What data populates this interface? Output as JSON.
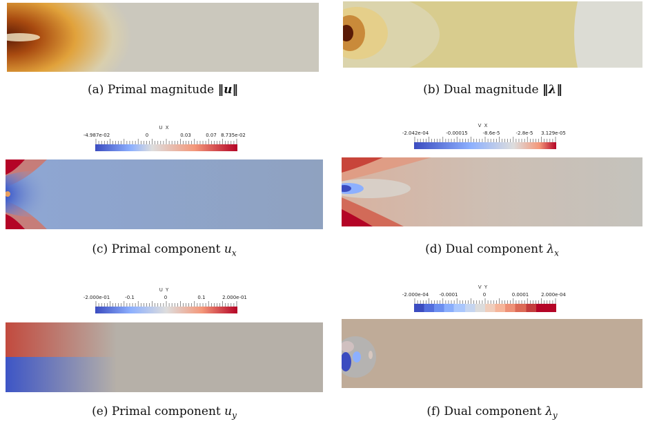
{
  "captions": {
    "a": {
      "prefix": "(a) Primal magnitude ",
      "math": "‖u‖"
    },
    "b": {
      "prefix": "(b) Dual magnitude ",
      "math": "‖λ‖"
    },
    "c": {
      "prefix": "(c) Primal component ",
      "math": "u",
      "sub": "x"
    },
    "d": {
      "prefix": "(d) Dual component ",
      "math": "λ",
      "sub": "x"
    },
    "e": {
      "prefix": "(e) Primal component ",
      "math": "u",
      "sub": "y"
    },
    "f": {
      "prefix": "(f) Dual component ",
      "math": "λ",
      "sub": "y"
    }
  },
  "colorbars": {
    "ux": {
      "title": "U X",
      "labels": [
        "-4.987e-02",
        "0",
        "0.03",
        "0.07",
        "8.735e-02"
      ]
    },
    "vx": {
      "title": "V X",
      "labels": [
        "-2.042e-04",
        "-0.00015",
        "-8.6e-5",
        "-2.8e-5",
        "3.129e-05"
      ]
    },
    "uy": {
      "title": "U Y",
      "labels": [
        "-2.000e-01",
        "-0.1",
        "0",
        "0.1",
        "2.000e-01"
      ]
    },
    "vy": {
      "title": "V Y",
      "labels": [
        "-2.000e-04",
        "-0.0001",
        "0",
        "0.0001",
        "2.000e-04"
      ]
    }
  },
  "colors": {
    "cool": "#3b4cc0",
    "warm": "#b40426",
    "neutral_primal": "#c9c6b8",
    "neutral_dual": "#d6c98e"
  }
}
